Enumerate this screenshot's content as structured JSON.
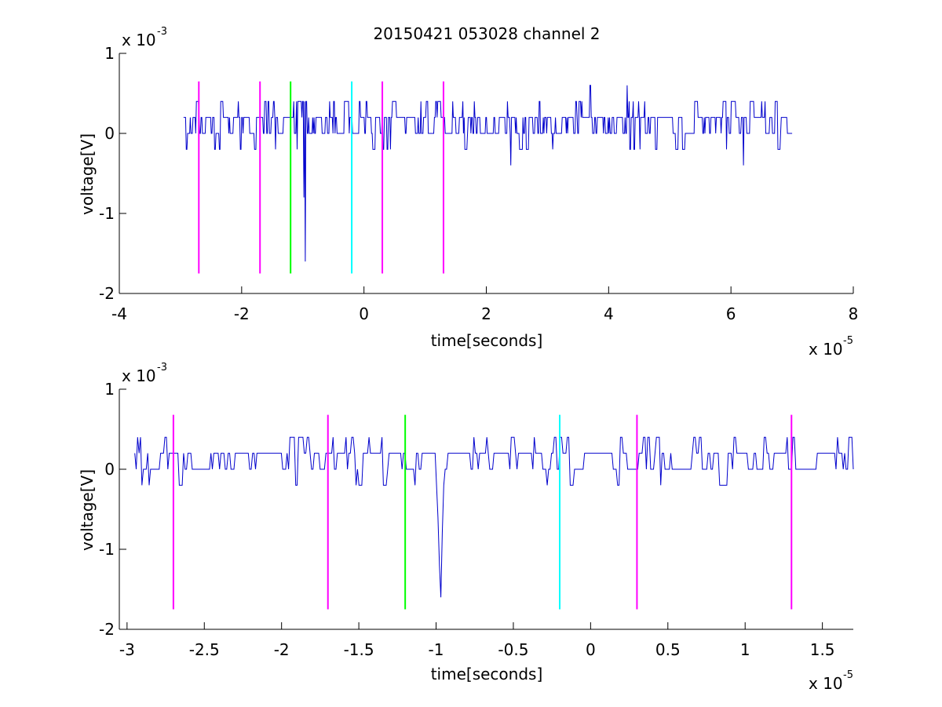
{
  "chart_data": [
    {
      "type": "line",
      "title": "20150421 053028 channel 2",
      "xlabel": "time[seconds]",
      "ylabel": "voltage[V]",
      "x_scale_label": "x 10",
      "x_scale_exp": "-5",
      "y_scale_label": "x 10",
      "y_scale_exp": "-3",
      "xlim": [
        -4,
        8
      ],
      "ylim": [
        -2,
        1
      ],
      "xticks": [
        -4,
        -2,
        0,
        2,
        4,
        6,
        8
      ],
      "xtick_labels": [
        "-4",
        "-2",
        "0",
        "2",
        "4",
        "6",
        "8"
      ],
      "yticks": [
        -2,
        -1,
        0,
        1
      ],
      "ytick_labels": [
        "-2",
        "-1",
        "0",
        "1"
      ],
      "grid": false,
      "series": [
        {
          "color": "#0000cc",
          "x_range": [
            -2.95,
            7.0
          ],
          "baseline_levels": [
            0.2,
            0.0,
            0.4,
            -0.2
          ],
          "spikes": [
            {
              "x": -2.9,
              "y": -0.2
            },
            {
              "x": -1.15,
              "y": 0.4
            },
            {
              "x": -0.98,
              "y": -0.8
            },
            {
              "x": -0.96,
              "y": -1.6
            },
            {
              "x": 1.8,
              "y": 0.4
            },
            {
              "x": 2.4,
              "y": -0.4
            },
            {
              "x": 3.7,
              "y": 0.6
            },
            {
              "x": 4.3,
              "y": 0.6
            },
            {
              "x": 6.2,
              "y": -0.4
            }
          ]
        }
      ],
      "markers": [
        {
          "x": -2.7,
          "y_top": 0.65,
          "y_bottom": -1.75,
          "color": "#ff00ff"
        },
        {
          "x": -1.7,
          "y_top": 0.65,
          "y_bottom": -1.75,
          "color": "#ff00ff"
        },
        {
          "x": -1.2,
          "y_top": 0.65,
          "y_bottom": -1.75,
          "color": "#00ff00"
        },
        {
          "x": -0.2,
          "y_top": 0.65,
          "y_bottom": -1.75,
          "color": "#00ffff"
        },
        {
          "x": 0.3,
          "y_top": 0.65,
          "y_bottom": -1.75,
          "color": "#ff00ff"
        },
        {
          "x": 1.3,
          "y_top": 0.65,
          "y_bottom": -1.75,
          "color": "#ff00ff"
        }
      ]
    },
    {
      "type": "line",
      "title": "",
      "xlabel": "time[seconds]",
      "ylabel": "voltage[V]",
      "x_scale_label": "x 10",
      "x_scale_exp": "-5",
      "y_scale_label": "x 10",
      "y_scale_exp": "-3",
      "xlim": [
        -3.05,
        1.7
      ],
      "ylim": [
        -2,
        1
      ],
      "xticks": [
        -3,
        -2.5,
        -2,
        -1.5,
        -1,
        -0.5,
        0,
        0.5,
        1,
        1.5
      ],
      "xtick_labels": [
        "-3",
        "-2.5",
        "-2",
        "-1.5",
        "-1",
        "-0.5",
        "0",
        "0.5",
        "1",
        "1.5"
      ],
      "yticks": [
        -2,
        -1,
        0,
        1
      ],
      "ytick_labels": [
        "-2",
        "-1",
        "0",
        "1"
      ],
      "grid": false,
      "series": [
        {
          "color": "#0000cc",
          "x_range": [
            -2.95,
            1.7
          ],
          "baseline_levels": [
            0.2,
            0.0,
            0.4,
            -0.2
          ],
          "spikes": [
            {
              "x": -2.93,
              "y": 0.4
            },
            {
              "x": -2.9,
              "y": -0.2
            },
            {
              "x": -1.0,
              "y": -0.2
            },
            {
              "x": -0.99,
              "y": -0.6
            },
            {
              "x": -0.98,
              "y": -1.2
            },
            {
              "x": -0.97,
              "y": -1.6
            },
            {
              "x": -0.96,
              "y": -0.8
            },
            {
              "x": -0.95,
              "y": -0.2
            }
          ]
        }
      ],
      "markers": [
        {
          "x": -2.7,
          "y_top": 0.68,
          "y_bottom": -1.75,
          "color": "#ff00ff"
        },
        {
          "x": -1.7,
          "y_top": 0.68,
          "y_bottom": -1.75,
          "color": "#ff00ff"
        },
        {
          "x": -1.2,
          "y_top": 0.68,
          "y_bottom": -1.75,
          "color": "#00ff00"
        },
        {
          "x": -0.2,
          "y_top": 0.68,
          "y_bottom": -1.75,
          "color": "#00ffff"
        },
        {
          "x": 0.3,
          "y_top": 0.68,
          "y_bottom": -1.75,
          "color": "#ff00ff"
        },
        {
          "x": 1.3,
          "y_top": 0.68,
          "y_bottom": -1.75,
          "color": "#ff00ff"
        }
      ]
    }
  ]
}
